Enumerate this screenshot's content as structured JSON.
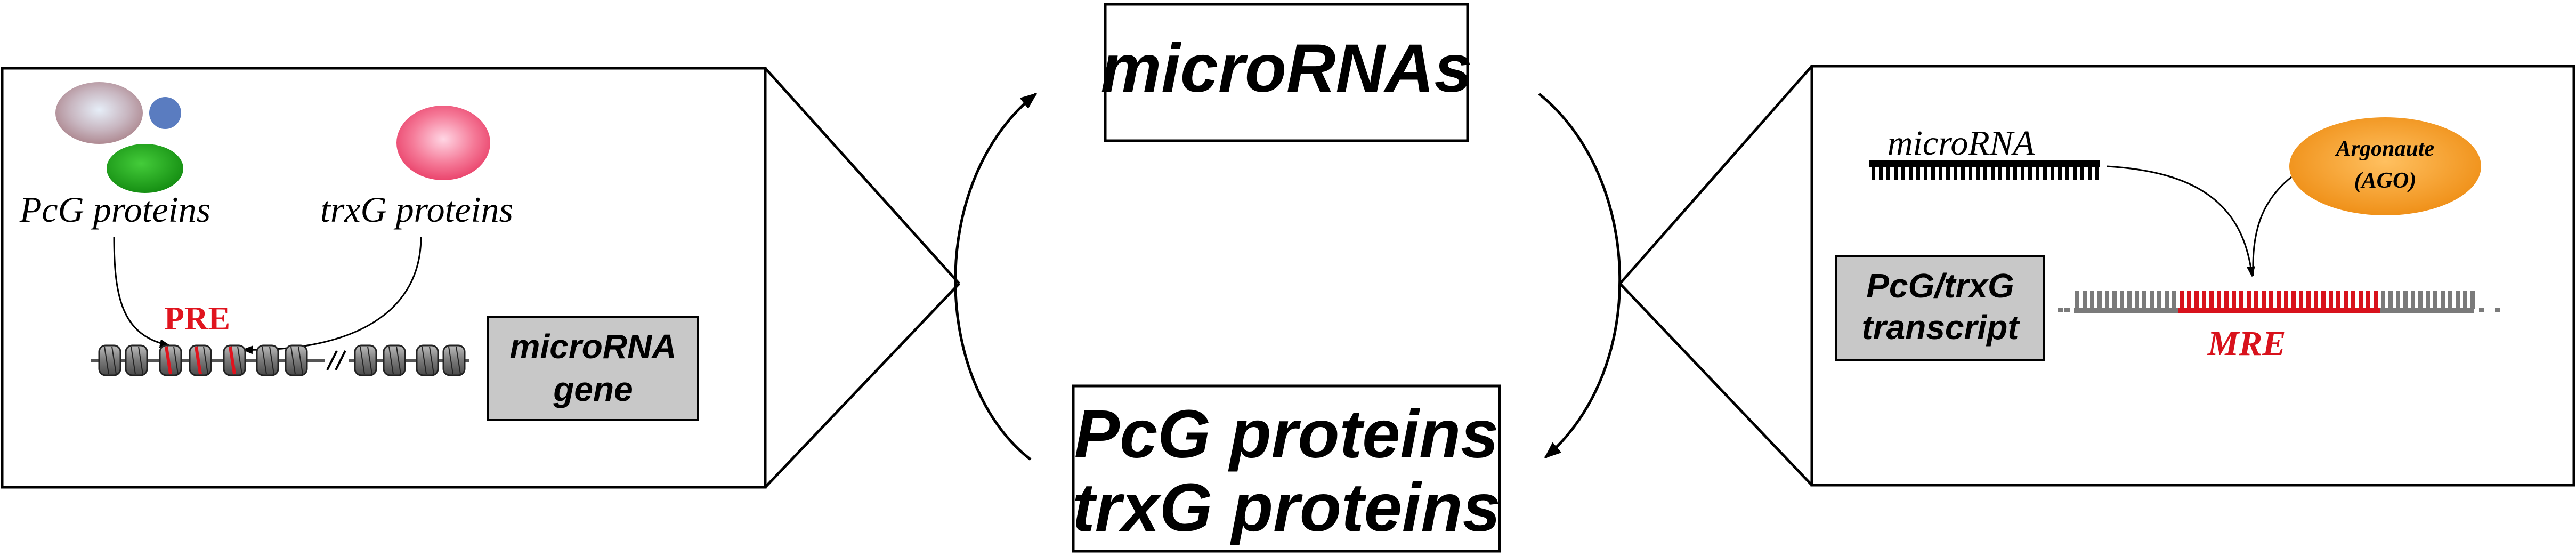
{
  "center": {
    "top_label": "microRNAs",
    "bottom_label_line1": "PcG proteins",
    "bottom_label_line2": "trxG proteins"
  },
  "left_panel": {
    "pcg_label": "PcG proteins",
    "trxg_label": "trxG proteins",
    "pre_label": "PRE",
    "gene_label_line1": "microRNA",
    "gene_label_line2": "gene"
  },
  "right_panel": {
    "microrna_label": "microRNA",
    "ago_label_line1": "Argonaute",
    "ago_label_line2": "(AGO)",
    "transcript_label_line1": "PcG/trxG",
    "transcript_label_line2": "transcript",
    "mre_label": "MRE"
  },
  "colors": {
    "pre_red": "#e0141e",
    "mre_red": "#d8121c",
    "ago_orange": "#f39a1e",
    "trxg_pink": "#f06080",
    "pcg_green": "#22a41c",
    "pcg_blue": "#5a7cc0",
    "pcg_mauve": "#b79098",
    "label_box_gray": "#c8c8c8",
    "nucleosome_gray": "#8a8a8a"
  }
}
